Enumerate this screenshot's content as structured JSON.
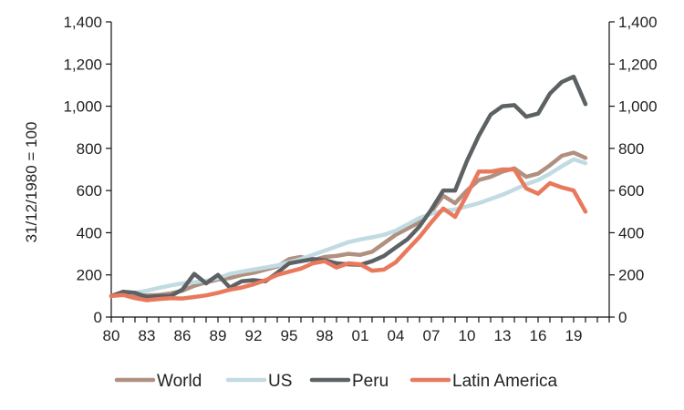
{
  "chart_data": {
    "type": "line",
    "title": "",
    "xlabel": "",
    "ylabel": "31/12/1980 = 100",
    "ylim": [
      0,
      1400
    ],
    "yticks": [
      0,
      200,
      400,
      600,
      800,
      1000,
      1200,
      1400
    ],
    "ytick_labels": [
      "0",
      "200",
      "400",
      "600",
      "800",
      "1,000",
      "1,200",
      "1,400"
    ],
    "xlim": [
      1980,
      2022
    ],
    "xticks": [
      1980,
      1983,
      1986,
      1989,
      1992,
      1995,
      1998,
      2001,
      2004,
      2007,
      2010,
      2013,
      2016,
      2019
    ],
    "xtick_labels": [
      "80",
      "83",
      "86",
      "89",
      "92",
      "95",
      "98",
      "01",
      "04",
      "07",
      "10",
      "13",
      "16",
      "19"
    ],
    "grid": false,
    "legend_position": "bottom",
    "x": [
      1980,
      1981,
      1982,
      1983,
      1984,
      1985,
      1986,
      1987,
      1988,
      1989,
      1990,
      1991,
      1992,
      1993,
      1994,
      1995,
      1996,
      1997,
      1998,
      1999,
      2000,
      2001,
      2002,
      2003,
      2004,
      2005,
      2006,
      2007,
      2008,
      2009,
      2010,
      2011,
      2012,
      2013,
      2014,
      2015,
      2016,
      2017,
      2018,
      2019,
      2020
    ],
    "series": [
      {
        "name": "World",
        "color": "#b09080",
        "values": [
          100,
          115,
          100,
          103,
          105,
          112,
          125,
          148,
          165,
          178,
          185,
          200,
          210,
          225,
          240,
          275,
          285,
          270,
          285,
          290,
          300,
          295,
          310,
          350,
          390,
          420,
          450,
          500,
          575,
          540,
          600,
          650,
          665,
          690,
          705,
          665,
          680,
          720,
          765,
          780,
          755
        ]
      },
      {
        "name": "US",
        "color": "#c2dbe2",
        "values": [
          100,
          110,
          115,
          125,
          138,
          150,
          160,
          165,
          172,
          185,
          205,
          215,
          225,
          235,
          245,
          260,
          275,
          295,
          315,
          335,
          355,
          368,
          378,
          390,
          410,
          440,
          470,
          490,
          505,
          510,
          525,
          540,
          560,
          580,
          605,
          630,
          650,
          680,
          715,
          748,
          730
        ]
      },
      {
        "name": "Peru",
        "color": "#5c6164",
        "values": [
          100,
          120,
          115,
          95,
          100,
          100,
          130,
          205,
          160,
          200,
          140,
          170,
          175,
          170,
          210,
          255,
          265,
          275,
          270,
          255,
          250,
          248,
          265,
          290,
          330,
          370,
          430,
          510,
          600,
          600,
          740,
          860,
          960,
          1000,
          1005,
          950,
          965,
          1060,
          1115,
          1140,
          1010
        ]
      },
      {
        "name": "Latin America",
        "color": "#e8795d",
        "values": [
          100,
          105,
          90,
          80,
          85,
          90,
          88,
          95,
          103,
          115,
          130,
          140,
          155,
          175,
          200,
          215,
          230,
          255,
          265,
          235,
          255,
          250,
          220,
          225,
          260,
          320,
          380,
          450,
          515,
          475,
          580,
          690,
          690,
          700,
          700,
          610,
          585,
          635,
          615,
          600,
          500
        ]
      }
    ]
  }
}
